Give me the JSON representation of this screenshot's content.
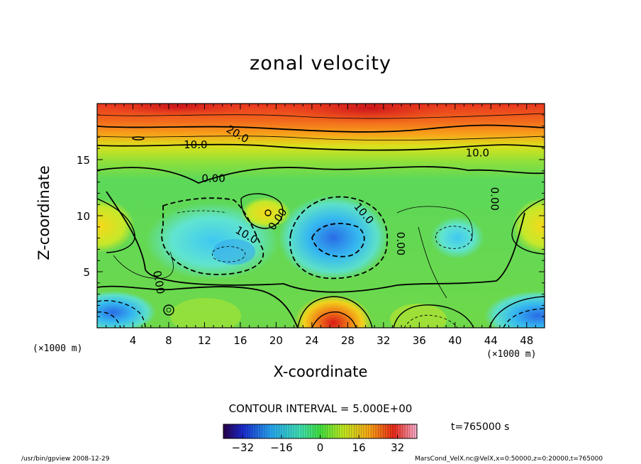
{
  "chart_data": {
    "type": "heatmap",
    "title": "zonal velocity",
    "xlabel": "X-coordinate",
    "ylabel": "Z-coordinate",
    "x_unit": "(×1000 m)",
    "y_unit": "(×1000 m)",
    "xlim": [
      0,
      50
    ],
    "ylim": [
      0,
      20
    ],
    "x_ticks": [
      4,
      8,
      12,
      16,
      20,
      24,
      28,
      32,
      36,
      40,
      44,
      48
    ],
    "y_ticks": [
      5,
      10,
      15
    ],
    "contour_interval_text": "CONTOUR INTERVAL = 5.000E+00",
    "contour_labels": [
      {
        "text": "20.0",
        "x": 15.5,
        "z": 17.0
      },
      {
        "text": "10.0",
        "x": 11.0,
        "z": 16.0
      },
      {
        "text": "10.0",
        "x": 42.5,
        "z": 15.3
      },
      {
        "text": "0.00",
        "x": 13.0,
        "z": 13.0
      },
      {
        "text": "0.00",
        "x": 44.0,
        "z": 11.5
      },
      {
        "text": "0.00",
        "x": 20.5,
        "z": 9.5
      },
      {
        "text": "0.00",
        "x": 33.5,
        "z": 7.5
      },
      {
        "text": "0.00",
        "x": 6.5,
        "z": 4.0
      },
      {
        "text": "10.0",
        "x": 29.5,
        "z": 10.0
      },
      {
        "text": "10.0",
        "x": 16.5,
        "z": 8.0
      }
    ],
    "colorbar": {
      "range": [
        -40,
        40
      ],
      "ticks": [
        -32,
        -16,
        0,
        16,
        32
      ]
    },
    "time_label": "t=765000 s"
  },
  "footer": {
    "left": "/usr/bin/gpview  2008-12-29",
    "right": "MarsCond_VelX.nc@VelX,x=0:50000,z=0:20000,t=765000"
  }
}
